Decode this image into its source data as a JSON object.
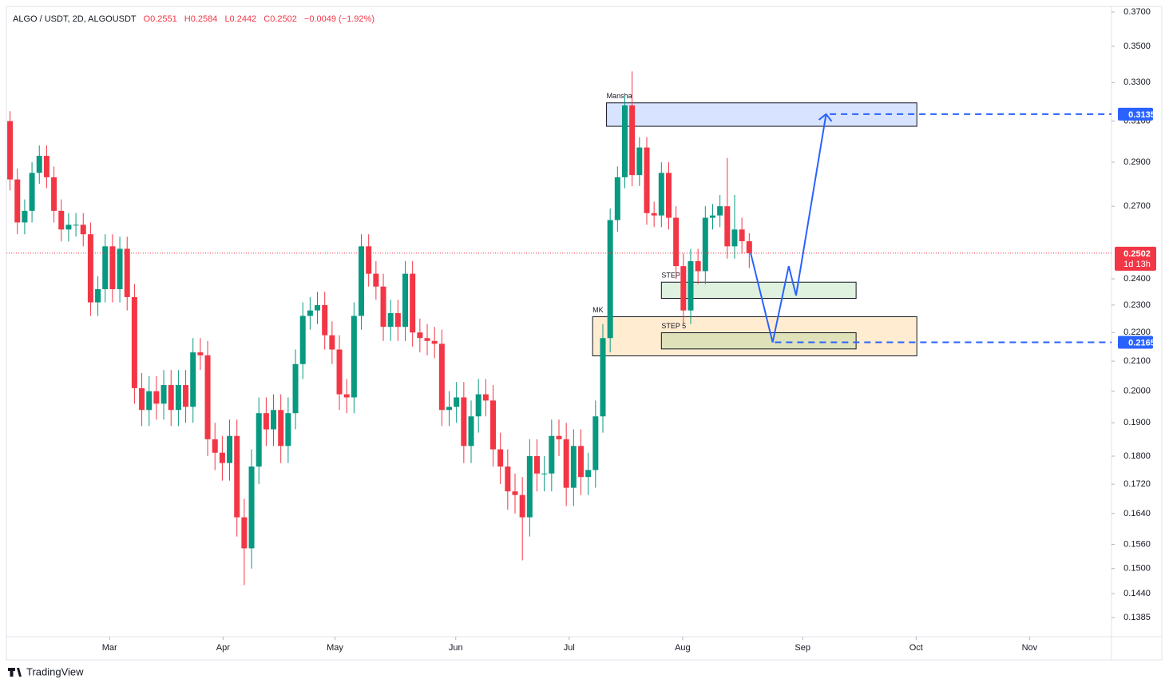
{
  "chart_data": {
    "type": "candlestick",
    "header": {
      "symbol": "ALGO / USDT, 2D, ALGOUSDT",
      "open": "O0.2551",
      "high": "H0.2584",
      "low": "L0.2442",
      "close": "C0.2502",
      "change": "−0.0049 (−1.92%)"
    },
    "log_scale": true,
    "up_color": "#089981",
    "down_color": "#f23645",
    "open": [
      0.31,
      0.282,
      0.263,
      0.268,
      0.285,
      0.293,
      0.283,
      0.268,
      0.26,
      0.262,
      0.262,
      0.258,
      0.231,
      0.236,
      0.253,
      0.236,
      0.252,
      0.233,
      0.201,
      0.194,
      0.2,
      0.196,
      0.202,
      0.194,
      0.202,
      0.195,
      0.213,
      0.212,
      0.185,
      0.181,
      0.178,
      0.186,
      0.163,
      0.155,
      0.177,
      0.193,
      0.188,
      0.194,
      0.183,
      0.193,
      0.209,
      0.226,
      0.228,
      0.23,
      0.219,
      0.214,
      0.199,
      0.198,
      0.226,
      0.253,
      0.242,
      0.237,
      0.222,
      0.227,
      0.222,
      0.242,
      0.22,
      0.218,
      0.217,
      0.216,
      0.194,
      0.195,
      0.198,
      0.183,
      0.192,
      0.199,
      0.197,
      0.182,
      0.177,
      0.17,
      0.169,
      0.163,
      0.18,
      0.175,
      0.175,
      0.186,
      0.185,
      0.171,
      0.183,
      0.174,
      0.176,
      0.192,
      0.218,
      0.264,
      0.283,
      0.318,
      0.284,
      0.297,
      0.267,
      0.266,
      0.285,
      0.265,
      0.245,
      0.228,
      0.247,
      0.243,
      0.265,
      0.266,
      0.27,
      0.253,
      0.26,
      0.2551
    ],
    "high": [
      0.315,
      0.287,
      0.273,
      0.29,
      0.298,
      0.298,
      0.288,
      0.273,
      0.267,
      0.267,
      0.267,
      0.263,
      0.241,
      0.258,
      0.258,
      0.257,
      0.257,
      0.238,
      0.206,
      0.205,
      0.205,
      0.207,
      0.207,
      0.207,
      0.207,
      0.218,
      0.218,
      0.217,
      0.19,
      0.186,
      0.191,
      0.191,
      0.168,
      0.182,
      0.198,
      0.198,
      0.199,
      0.199,
      0.198,
      0.214,
      0.231,
      0.233,
      0.235,
      0.235,
      0.224,
      0.219,
      0.204,
      0.231,
      0.258,
      0.258,
      0.247,
      0.242,
      0.232,
      0.232,
      0.247,
      0.247,
      0.225,
      0.223,
      0.222,
      0.221,
      0.2,
      0.203,
      0.203,
      0.197,
      0.204,
      0.204,
      0.202,
      0.187,
      0.182,
      0.175,
      0.174,
      0.185,
      0.185,
      0.18,
      0.191,
      0.191,
      0.19,
      0.188,
      0.188,
      0.181,
      0.197,
      0.223,
      0.269,
      0.288,
      0.323,
      0.336,
      0.302,
      0.302,
      0.272,
      0.29,
      0.29,
      0.27,
      0.25,
      0.252,
      0.252,
      0.27,
      0.271,
      0.275,
      0.292,
      0.275,
      0.265,
      0.2584
    ],
    "low": [
      0.277,
      0.258,
      0.258,
      0.263,
      0.28,
      0.278,
      0.263,
      0.255,
      0.255,
      0.257,
      0.253,
      0.226,
      0.226,
      0.231,
      0.231,
      0.231,
      0.228,
      0.196,
      0.189,
      0.189,
      0.191,
      0.191,
      0.189,
      0.189,
      0.19,
      0.19,
      0.207,
      0.18,
      0.176,
      0.173,
      0.173,
      0.158,
      0.146,
      0.15,
      0.172,
      0.183,
      0.183,
      0.178,
      0.178,
      0.188,
      0.204,
      0.221,
      0.223,
      0.214,
      0.209,
      0.194,
      0.193,
      0.193,
      0.221,
      0.237,
      0.232,
      0.217,
      0.217,
      0.217,
      0.217,
      0.215,
      0.213,
      0.212,
      0.211,
      0.189,
      0.189,
      0.19,
      0.178,
      0.178,
      0.187,
      0.192,
      0.177,
      0.172,
      0.165,
      0.164,
      0.152,
      0.158,
      0.17,
      0.17,
      0.17,
      0.18,
      0.166,
      0.166,
      0.169,
      0.169,
      0.171,
      0.187,
      0.213,
      0.259,
      0.278,
      0.279,
      0.279,
      0.262,
      0.261,
      0.261,
      0.26,
      0.24,
      0.223,
      0.223,
      0.238,
      0.238,
      0.26,
      0.261,
      0.248,
      0.248,
      0.25,
      0.2442
    ],
    "close": [
      0.282,
      0.263,
      0.268,
      0.285,
      0.293,
      0.283,
      0.268,
      0.26,
      0.262,
      0.262,
      0.258,
      0.231,
      0.236,
      0.253,
      0.236,
      0.252,
      0.233,
      0.201,
      0.194,
      0.2,
      0.196,
      0.202,
      0.194,
      0.202,
      0.195,
      0.213,
      0.212,
      0.185,
      0.181,
      0.178,
      0.186,
      0.163,
      0.155,
      0.177,
      0.193,
      0.188,
      0.194,
      0.183,
      0.193,
      0.209,
      0.226,
      0.228,
      0.23,
      0.219,
      0.214,
      0.199,
      0.198,
      0.226,
      0.253,
      0.242,
      0.237,
      0.222,
      0.227,
      0.222,
      0.242,
      0.22,
      0.218,
      0.217,
      0.216,
      0.194,
      0.195,
      0.198,
      0.183,
      0.192,
      0.199,
      0.197,
      0.182,
      0.177,
      0.17,
      0.169,
      0.163,
      0.18,
      0.175,
      0.175,
      0.186,
      0.185,
      0.171,
      0.183,
      0.174,
      0.176,
      0.192,
      0.218,
      0.264,
      0.283,
      0.318,
      0.284,
      0.297,
      0.267,
      0.266,
      0.285,
      0.265,
      0.245,
      0.228,
      0.247,
      0.243,
      0.265,
      0.266,
      0.27,
      0.253,
      0.26,
      0.2551,
      0.2502
    ],
    "xlim": [
      -0.5,
      150.5
    ],
    "xticks": [
      {
        "value": 13.6,
        "label": "Mar"
      },
      {
        "value": 29.1,
        "label": "Apr"
      },
      {
        "value": 44.4,
        "label": "May"
      },
      {
        "value": 60.9,
        "label": "Jun"
      },
      {
        "value": 76.4,
        "label": "Jul"
      },
      {
        "value": 91.9,
        "label": "Aug"
      },
      {
        "value": 108.3,
        "label": "Sep"
      },
      {
        "value": 123.8,
        "label": "Oct"
      },
      {
        "value": 139.3,
        "label": "Nov"
      }
    ],
    "ylim": [
      0.1343,
      0.3734
    ],
    "yticks": [
      {
        "value": 0.37,
        "label": "0.3700"
      },
      {
        "value": 0.35,
        "label": "0.3500"
      },
      {
        "value": 0.33,
        "label": "0.3300"
      },
      {
        "value": 0.31,
        "label": "0.3100"
      },
      {
        "value": 0.29,
        "label": "0.2900"
      },
      {
        "value": 0.27,
        "label": "0.2700"
      },
      {
        "value": 0.24,
        "label": "0.2400"
      },
      {
        "value": 0.23,
        "label": "0.2300"
      },
      {
        "value": 0.22,
        "label": "0.2200"
      },
      {
        "value": 0.21,
        "label": "0.2100"
      },
      {
        "value": 0.2,
        "label": "0.2000"
      },
      {
        "value": 0.19,
        "label": "0.1900"
      },
      {
        "value": 0.18,
        "label": "0.1800"
      },
      {
        "value": 0.172,
        "label": "0.1720"
      },
      {
        "value": 0.164,
        "label": "0.1640"
      },
      {
        "value": 0.156,
        "label": "0.1560"
      },
      {
        "value": 0.15,
        "label": "0.1500"
      },
      {
        "value": 0.144,
        "label": "0.1440"
      },
      {
        "value": 0.1385,
        "label": "0.1385"
      }
    ],
    "current_price": {
      "value": 0.2502,
      "label": "0.2502",
      "countdown": "1d 13h",
      "color": "#f23645"
    },
    "levels": [
      {
        "value": 0.3135,
        "label": "0.3135",
        "from": 112.0,
        "color": "#2962ff"
      },
      {
        "value": 0.2165,
        "label": "0.2165",
        "from": 104.5,
        "color": "#2962ff"
      }
    ],
    "zones": [
      {
        "label": "Mansha",
        "top": 0.3193,
        "bottom": 0.3074,
        "start": 81.5,
        "end": 123.9,
        "color": "#2962ff"
      },
      {
        "label": "MK",
        "top": 0.2257,
        "bottom": 0.2118,
        "start": 79.6,
        "end": 123.9,
        "color": "#ff9800"
      },
      {
        "label": "STEP",
        "top": 0.2387,
        "bottom": 0.2325,
        "start": 89.0,
        "end": 115.6,
        "color": "#4caf50"
      },
      {
        "label": "STEP 5",
        "top": 0.2199,
        "bottom": 0.2142,
        "start": 89.0,
        "end": 115.6,
        "color": "#4caf50"
      }
    ],
    "projection": {
      "x": [
        101.2,
        104.2,
        106.4,
        107.4,
        111.5
      ],
      "y": [
        0.2502,
        0.2165,
        0.245,
        0.2336,
        0.3135
      ],
      "color": "#2962ff"
    },
    "brand": "TradingView"
  }
}
